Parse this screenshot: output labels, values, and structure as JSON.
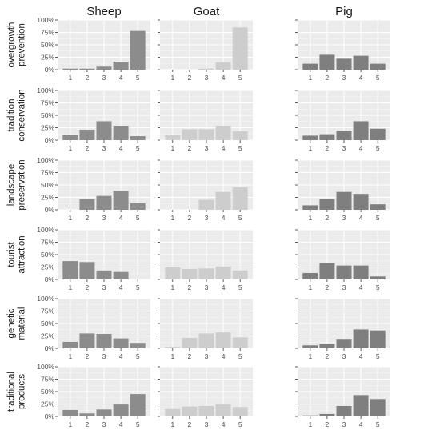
{
  "chart_data": {
    "type": "bar",
    "facet_columns": [
      "Sheep",
      "Goat",
      "Pig"
    ],
    "facet_rows": [
      "overgrowth prevention",
      "tradition conservation",
      "landscape preservation",
      "tourist attraction",
      "genetic material",
      "traditional products"
    ],
    "categories": [
      "1",
      "2",
      "3",
      "4",
      "5"
    ],
    "y_ticks": [
      "0%",
      "25%",
      "50%",
      "75%",
      "100%"
    ],
    "ylim": [
      0,
      100
    ],
    "grid": true,
    "colors": {
      "Sheep": "#8c8c8c",
      "Goat": "#cdcdcd",
      "Pig": "#7f7f7f",
      "panel": "#ebebeb",
      "gridline": "#ffffff"
    },
    "values": {
      "overgrowth prevention": {
        "Sheep": [
          2,
          2,
          6,
          16,
          78
        ],
        "Goat": [
          0,
          0,
          2,
          15,
          85
        ],
        "Pig": [
          12,
          30,
          22,
          28,
          12
        ]
      },
      "tradition conservation": {
        "Sheep": [
          10,
          21,
          38,
          29,
          8
        ],
        "Goat": [
          10,
          22,
          22,
          29,
          18
        ],
        "Pig": [
          9,
          12,
          19,
          38,
          23
        ]
      },
      "landscape preservation": {
        "Sheep": [
          0,
          22,
          28,
          38,
          13
        ],
        "Goat": [
          0,
          0,
          20,
          36,
          45
        ],
        "Pig": [
          9,
          22,
          36,
          32,
          11
        ]
      },
      "tourist attraction": {
        "Sheep": [
          37,
          35,
          18,
          15,
          0
        ],
        "Goat": [
          24,
          21,
          22,
          26,
          18
        ],
        "Pig": [
          13,
          33,
          28,
          28,
          6
        ]
      },
      "genetic material": {
        "Sheep": [
          13,
          30,
          29,
          20,
          11
        ],
        "Goat": [
          3,
          21,
          30,
          32,
          22
        ],
        "Pig": [
          6,
          9,
          19,
          38,
          36
        ]
      },
      "traditional products": {
        "Sheep": [
          13,
          6,
          14,
          24,
          45
        ],
        "Goat": [
          15,
          20,
          21,
          24,
          19
        ],
        "Pig": [
          2,
          5,
          21,
          43,
          35
        ]
      }
    }
  }
}
